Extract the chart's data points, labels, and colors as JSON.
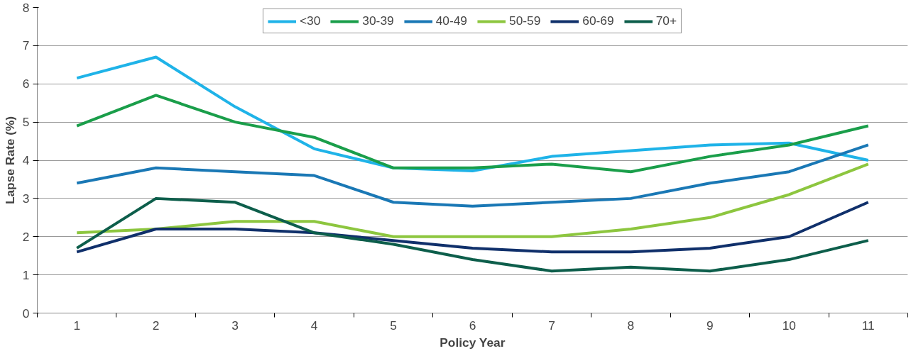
{
  "chart_data": {
    "type": "line",
    "xlabel": "Policy Year",
    "ylabel": "Lapse Rate (%)",
    "categories": [
      "1",
      "2",
      "3",
      "4",
      "5",
      "6",
      "7",
      "8",
      "9",
      "10",
      "11"
    ],
    "ylim": [
      0,
      8
    ],
    "yticks": [
      0,
      1,
      2,
      3,
      4,
      5,
      6,
      7,
      8
    ],
    "grid": "y",
    "legend": "top",
    "marker": "none",
    "line_style": "solid",
    "series": [
      {
        "name": "<30",
        "color": "#1fb3e8",
        "values": [
          6.15,
          6.7,
          5.4,
          4.3,
          3.8,
          3.72,
          4.1,
          4.25,
          4.4,
          4.45,
          4.0
        ]
      },
      {
        "name": "30-39",
        "color": "#1a9e4a",
        "values": [
          4.9,
          5.7,
          5.0,
          4.6,
          3.8,
          3.8,
          3.9,
          3.7,
          4.1,
          4.4,
          4.9
        ]
      },
      {
        "name": "40-49",
        "color": "#1a78b5",
        "values": [
          3.4,
          3.8,
          3.7,
          3.6,
          2.9,
          2.8,
          2.9,
          3.0,
          3.4,
          3.7,
          4.4
        ]
      },
      {
        "name": "50-59",
        "color": "#8dc63f",
        "values": [
          2.1,
          2.2,
          2.4,
          2.4,
          2.0,
          2.0,
          2.0,
          2.2,
          2.5,
          3.1,
          3.9
        ]
      },
      {
        "name": "60-69",
        "color": "#10306b",
        "values": [
          1.6,
          2.2,
          2.2,
          2.1,
          1.9,
          1.7,
          1.6,
          1.6,
          1.7,
          2.0,
          2.9
        ]
      },
      {
        "name": "70+",
        "color": "#0d5e4b",
        "values": [
          1.7,
          3.0,
          2.9,
          2.1,
          1.8,
          1.4,
          1.1,
          1.2,
          1.1,
          1.4,
          1.9
        ]
      }
    ]
  }
}
